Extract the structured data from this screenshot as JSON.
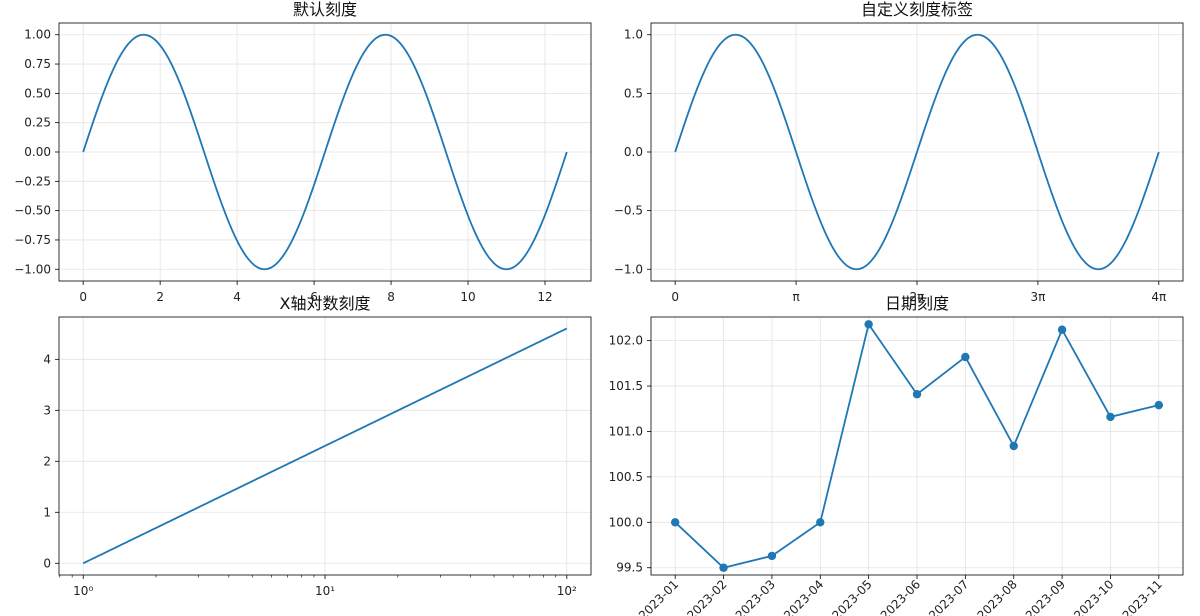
{
  "chart_data": [
    {
      "type": "line",
      "title": "默认刻度",
      "function": "sin(x)",
      "x_range": [
        0,
        12.566
      ],
      "xlim": [
        -0.628,
        13.195
      ],
      "ylim": [
        -1.1,
        1.1
      ],
      "x_ticks": [
        0,
        2,
        4,
        6,
        8,
        10,
        12
      ],
      "x_tick_labels": [
        "0",
        "2",
        "4",
        "6",
        "8",
        "10",
        "12"
      ],
      "y_ticks": [
        1.0,
        0.75,
        0.5,
        0.25,
        0.0,
        -0.25,
        -0.5,
        -0.75,
        -1.0
      ],
      "y_tick_labels": [
        "1.00",
        "0.75",
        "0.50",
        "0.25",
        "0.00",
        "−0.25",
        "−0.50",
        "−0.75",
        "−1.00"
      ],
      "grid": true,
      "color": "#1f77b4"
    },
    {
      "type": "line",
      "title": "自定义刻度标签",
      "function": "sin(x)",
      "x_range": [
        0,
        12.566
      ],
      "xlim": [
        -0.628,
        13.195
      ],
      "ylim": [
        -1.1,
        1.1
      ],
      "x_ticks": [
        0,
        3.1416,
        6.2832,
        9.4248,
        12.566
      ],
      "x_tick_labels": [
        "0",
        "π",
        "2π",
        "3π",
        "4π"
      ],
      "y_ticks": [
        1.0,
        0.5,
        0.0,
        -0.5,
        -1.0
      ],
      "y_tick_labels": [
        "1.0",
        "0.5",
        "0.0",
        "−0.5",
        "−1.0"
      ],
      "grid": true,
      "color": "#1f77b4"
    },
    {
      "type": "line",
      "title": "X轴对数刻度",
      "x_scale": "log",
      "function": "ln(x)",
      "x_range": [
        1,
        100
      ],
      "xlim": [
        0.794,
        125.9
      ],
      "ylim": [
        -0.23,
        4.83
      ],
      "x_tick_labels": [
        "10⁰",
        "10¹",
        "10²"
      ],
      "y_ticks": [
        0,
        1,
        2,
        3,
        4
      ],
      "y_tick_labels": [
        "0",
        "1",
        "2",
        "3",
        "4"
      ],
      "grid": true,
      "color": "#1f77b4"
    },
    {
      "type": "line",
      "title": "日期刻度",
      "markers": true,
      "categories": [
        "2023-01",
        "2023-02",
        "2023-03",
        "2023-04",
        "2023-05",
        "2023-06",
        "2023-07",
        "2023-08",
        "2023-09",
        "2023-10",
        "2023-11"
      ],
      "values": [
        100.0,
        99.5,
        99.63,
        100.0,
        102.18,
        101.41,
        101.82,
        100.84,
        102.12,
        101.16,
        101.29
      ],
      "ylim": [
        99.42,
        102.26
      ],
      "y_ticks": [
        99.5,
        100.0,
        100.5,
        101.0,
        101.5,
        102.0
      ],
      "y_tick_labels": [
        "99.5",
        "100.0",
        "100.5",
        "101.0",
        "101.5",
        "102.0"
      ],
      "x_tick_rotation": 45,
      "grid": true,
      "color": "#1f77b4"
    }
  ]
}
